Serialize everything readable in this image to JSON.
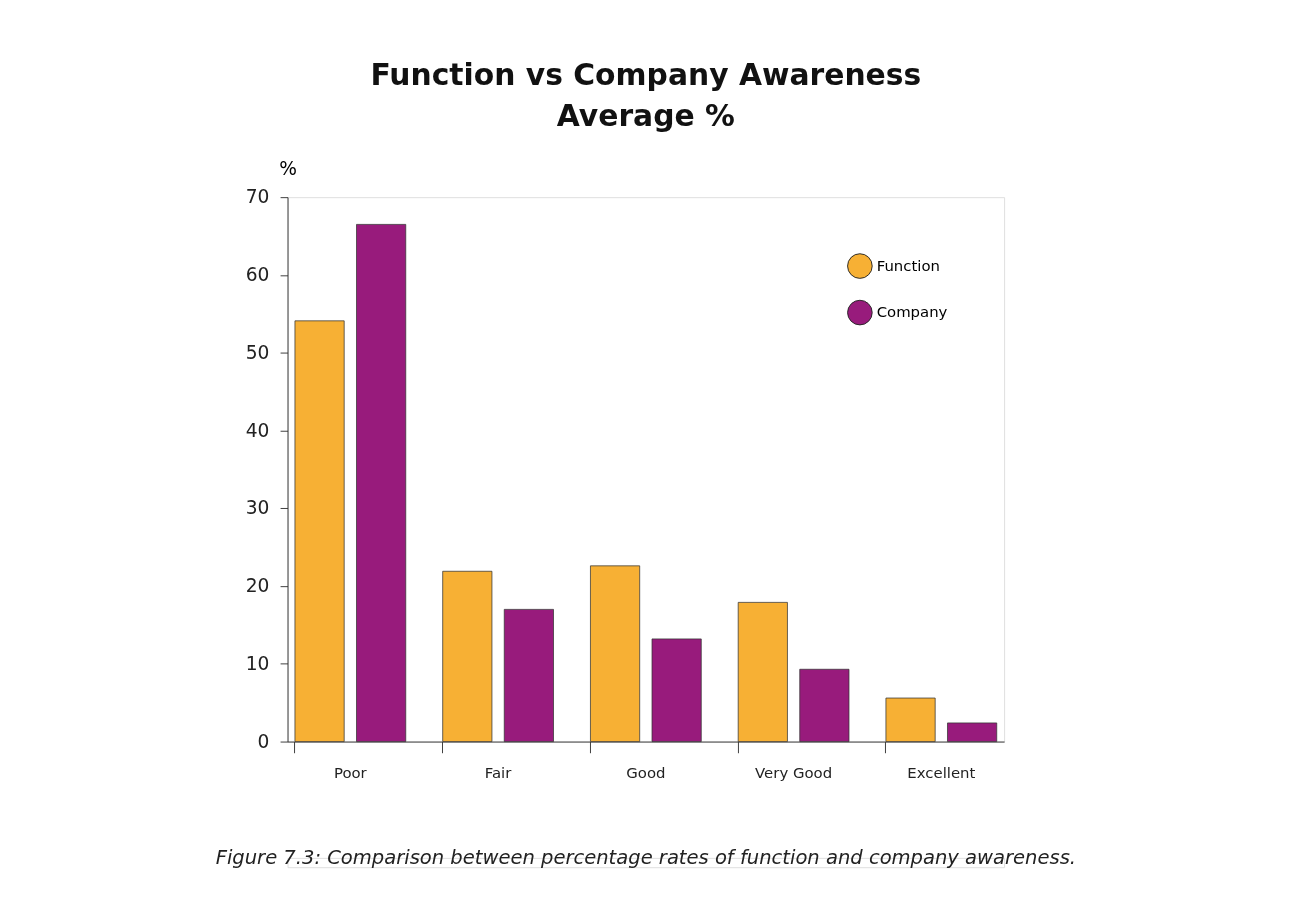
{
  "chart_data": {
    "type": "bar",
    "title": "Function vs Company Awareness\nAverage %",
    "ylabel": "%",
    "categories": [
      "Poor",
      "Fair",
      "Good",
      "Very Good",
      "Excellent"
    ],
    "series": [
      {
        "name": "Function",
        "color": "#f7b034",
        "values": [
          54.1,
          21.9,
          22.6,
          17.9,
          5.6
        ]
      },
      {
        "name": "Company",
        "color": "#981b7c",
        "values": [
          66.5,
          17.0,
          13.2,
          9.3,
          2.4
        ]
      }
    ],
    "ylim": [
      0,
      70
    ],
    "yticks": [
      0,
      10,
      20,
      30,
      40,
      50,
      60,
      70
    ],
    "grid": false,
    "legend": "top right",
    "annotations": [
      "Figure 7.3: Comparison between percentage rates of function and company awareness."
    ]
  }
}
